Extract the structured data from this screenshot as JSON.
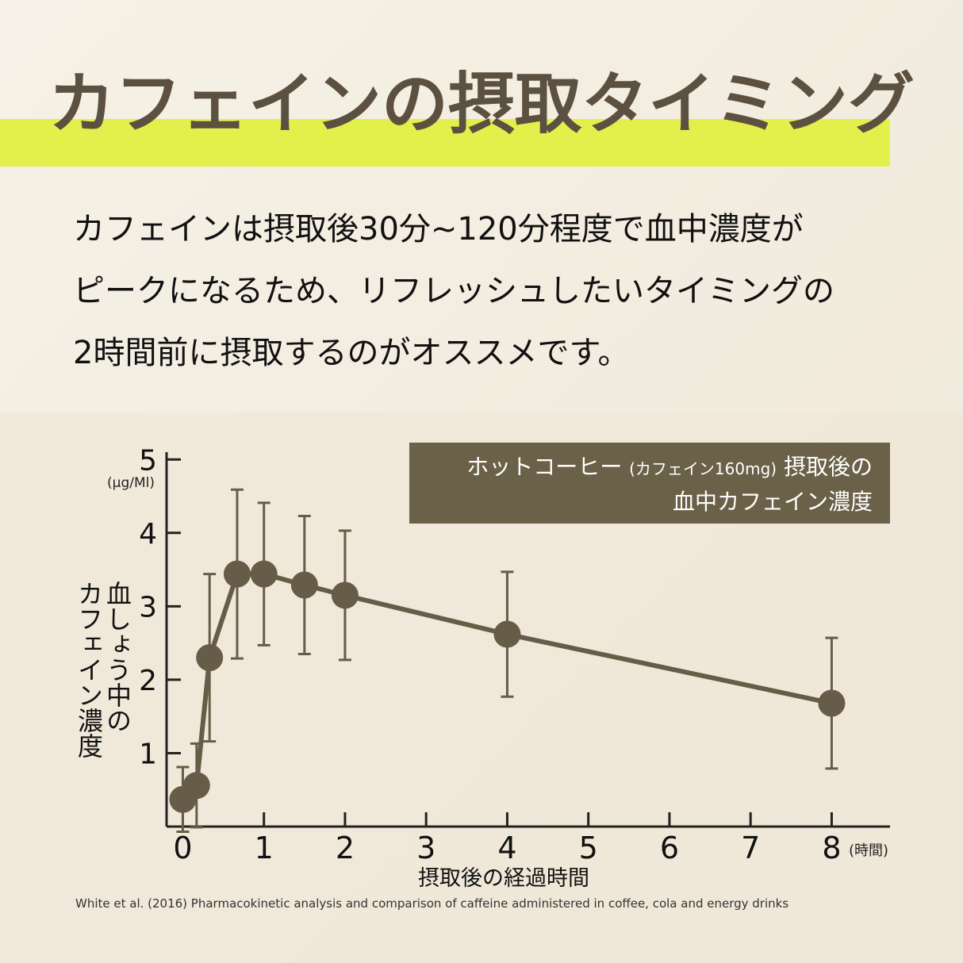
{
  "header": {
    "title": "カフェインの摂取タイミング"
  },
  "body": {
    "lines": [
      "カフェインは摂取後30分~120分程度で血中濃度が",
      "ピークになるため、リフレッシュしたいタイミングの",
      "2時間前に摂取するのがオススメです。"
    ]
  },
  "chart_data": {
    "type": "line",
    "legend_text": {
      "line1": [
        "ホットコーヒー",
        "(カフェイン160mg)",
        "摂取後の"
      ],
      "line2": "血中カフェイン濃度"
    },
    "y_unit": "(μg/Ml)",
    "x_unit": "(時間)",
    "x_label": "摂取後の経過時間",
    "y_label": [
      "血しょう中の",
      "カフェイン濃度"
    ],
    "x": [
      0,
      0.17,
      0.33,
      0.67,
      1,
      1.5,
      2,
      4,
      8
    ],
    "series": [
      {
        "color": "#675c47",
        "values": [
          0.37,
          0.56,
          2.3,
          3.44,
          3.44,
          3.29,
          3.15,
          2.62,
          1.68
        ],
        "errors": [
          0.44,
          0.57,
          1.14,
          1.15,
          0.97,
          0.94,
          0.88,
          0.85,
          0.89
        ]
      }
    ],
    "xlim": [
      -0.2,
      8.7
    ],
    "ylim": [
      0,
      5.1
    ],
    "xticks": [
      0,
      1,
      2,
      3,
      4,
      5,
      6,
      7,
      8
    ],
    "yticks": [
      1,
      2,
      3,
      4,
      5
    ],
    "source": "White et al. (2016) Pharmacokinetic analysis and comparison of caffeine administered in coffee, cola and energy drinks"
  }
}
